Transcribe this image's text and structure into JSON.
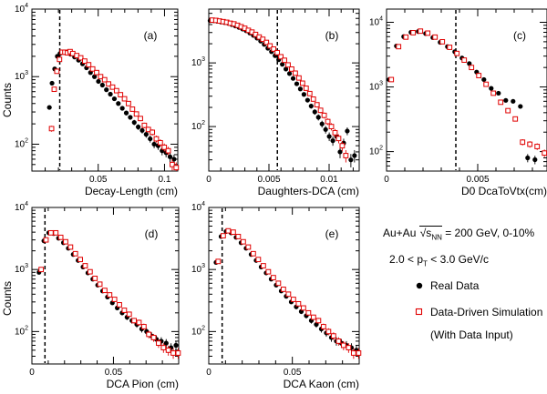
{
  "chart_data": [
    {
      "id": "a",
      "type": "scatter",
      "panel_label": "(a)",
      "xlabel": "Decay-Length (cm)",
      "ylabel": "Counts",
      "log_y": true,
      "xlim": [
        0,
        0.11
      ],
      "ylim": [
        40,
        10000
      ],
      "xticks": [
        0.05,
        0.1
      ],
      "cut": 0.021,
      "series": [
        {
          "name": "Real Data",
          "x": [
            0.014,
            0.016,
            0.018,
            0.02,
            0.022,
            0.024,
            0.026,
            0.028,
            0.03,
            0.033,
            0.036,
            0.039,
            0.042,
            0.045,
            0.048,
            0.051,
            0.054,
            0.057,
            0.06,
            0.063,
            0.066,
            0.069,
            0.072,
            0.075,
            0.078,
            0.081,
            0.084,
            0.087,
            0.09,
            0.093,
            0.096,
            0.099,
            0.102,
            0.105,
            0.108
          ],
          "y": [
            350,
            800,
            1300,
            2000,
            2200,
            2300,
            2300,
            2250,
            2150,
            1950,
            1750,
            1550,
            1350,
            1150,
            1000,
            850,
            750,
            640,
            550,
            470,
            400,
            340,
            290,
            250,
            210,
            180,
            160,
            140,
            120,
            100,
            95,
            80,
            75,
            65,
            60
          ]
        },
        {
          "name": "Data-Driven Simulation (With Data Input)",
          "x": [
            0.014,
            0.016,
            0.018,
            0.02,
            0.022,
            0.024,
            0.026,
            0.028,
            0.03,
            0.033,
            0.036,
            0.039,
            0.042,
            0.045,
            0.048,
            0.051,
            0.054,
            0.057,
            0.06,
            0.063,
            0.066,
            0.069,
            0.072,
            0.075,
            0.078,
            0.081,
            0.084,
            0.087,
            0.09,
            0.093,
            0.096,
            0.099,
            0.102,
            0.105,
            0.108
          ],
          "y": [
            170,
            650,
            1200,
            1800,
            2300,
            2300,
            2250,
            2350,
            2200,
            2050,
            1900,
            1700,
            1500,
            1300,
            1150,
            1000,
            900,
            780,
            700,
            620,
            540,
            470,
            400,
            330,
            280,
            240,
            190,
            165,
            150,
            120,
            105,
            90,
            80,
            50,
            45
          ]
        }
      ]
    },
    {
      "id": "b",
      "type": "scatter",
      "panel_label": "(b)",
      "xlabel": "Daughters-DCA (cm)",
      "log_y": true,
      "xlim": [
        0,
        0.0125
      ],
      "ylim": [
        20,
        7000
      ],
      "xticks": [
        0,
        0.005,
        0.01
      ],
      "cut": 0.0057,
      "series": [
        {
          "name": "Real Data",
          "x": [
            0.0002,
            0.0005,
            0.0008,
            0.0011,
            0.0014,
            0.0017,
            0.002,
            0.0023,
            0.0026,
            0.0029,
            0.0032,
            0.0035,
            0.0038,
            0.0041,
            0.0044,
            0.0047,
            0.005,
            0.0053,
            0.0056,
            0.0059,
            0.0062,
            0.0065,
            0.0068,
            0.0071,
            0.0074,
            0.0077,
            0.008,
            0.0083,
            0.0086,
            0.0089,
            0.0092,
            0.0095,
            0.0098,
            0.0101,
            0.0104,
            0.0107,
            0.011,
            0.0113,
            0.0116,
            0.0119,
            0.0122
          ],
          "y": [
            4600,
            4600,
            4500,
            4400,
            4300,
            4200,
            4000,
            3800,
            3600,
            3400,
            3200,
            2950,
            2700,
            2450,
            2200,
            1950,
            1700,
            1500,
            1300,
            1120,
            950,
            800,
            680,
            570,
            470,
            390,
            320,
            260,
            210,
            170,
            140,
            110,
            90,
            70,
            60,
            70,
            40,
            55,
            85,
            30,
            35
          ]
        },
        {
          "name": "Data-Driven Simulation (With Data Input)",
          "x": [
            0.0002,
            0.0005,
            0.0008,
            0.0011,
            0.0014,
            0.0017,
            0.002,
            0.0023,
            0.0026,
            0.0029,
            0.0032,
            0.0035,
            0.0038,
            0.0041,
            0.0044,
            0.0047,
            0.005,
            0.0053,
            0.0056,
            0.0059,
            0.0062,
            0.0065,
            0.0068,
            0.0071,
            0.0074,
            0.0077,
            0.008,
            0.0083,
            0.0086,
            0.0089,
            0.0092,
            0.0095,
            0.0098,
            0.0101,
            0.0104,
            0.0107,
            0.011,
            0.0113
          ],
          "y": [
            4700,
            4650,
            4550,
            4450,
            4350,
            4200,
            4100,
            3900,
            3700,
            3500,
            3250,
            3050,
            2800,
            2550,
            2350,
            2100,
            1850,
            1650,
            1450,
            1250,
            1100,
            930,
            800,
            690,
            580,
            480,
            400,
            330,
            270,
            220,
            180,
            150,
            120,
            100,
            80,
            65,
            50,
            35
          ]
        }
      ]
    },
    {
      "id": "c",
      "type": "scatter",
      "panel_label": "(c)",
      "xlabel": "D0 DcaToVtx(cm)",
      "log_y": true,
      "xlim": [
        0,
        0.0088
      ],
      "ylim": [
        50,
        16000
      ],
      "xticks": [
        0,
        0.005
      ],
      "cut": 0.0038,
      "series": [
        {
          "name": "Real Data",
          "x": [
            0.0002,
            0.0006,
            0.001,
            0.0014,
            0.0018,
            0.0022,
            0.0026,
            0.003,
            0.0034,
            0.0038,
            0.0042,
            0.0046,
            0.005,
            0.0054,
            0.0058,
            0.0062,
            0.0066,
            0.007,
            0.0074,
            0.0078,
            0.0082
          ],
          "y": [
            1300,
            4300,
            6000,
            7000,
            7200,
            6700,
            5800,
            4900,
            4200,
            3500,
            2800,
            2300,
            1700,
            1300,
            950,
            800,
            620,
            600,
            500,
            80,
            75
          ]
        },
        {
          "name": "Data-Driven Simulation (With Data Input)",
          "x": [
            0.0002,
            0.0006,
            0.001,
            0.0014,
            0.0018,
            0.0022,
            0.0026,
            0.003,
            0.0034,
            0.0038,
            0.0042,
            0.0046,
            0.005,
            0.0054,
            0.0058,
            0.0062,
            0.0066,
            0.007,
            0.0074,
            0.0078,
            0.0082,
            0.0086
          ],
          "y": [
            1300,
            4200,
            5900,
            6900,
            7300,
            6800,
            5900,
            5000,
            4100,
            3300,
            2600,
            2000,
            1500,
            1100,
            800,
            580,
            430,
            320,
            140,
            130,
            120,
            95
          ]
        }
      ]
    },
    {
      "id": "d",
      "type": "scatter",
      "panel_label": "(d)",
      "xlabel": "DCA Pion (cm)",
      "ylabel": "Counts",
      "log_y": true,
      "xlim": [
        0,
        0.09
      ],
      "ylim": [
        30,
        10000
      ],
      "xticks": [
        0,
        0.05
      ],
      "cut": 0.008,
      "series": [
        {
          "name": "Real Data",
          "x": [
            0.005,
            0.008,
            0.011,
            0.014,
            0.017,
            0.02,
            0.023,
            0.026,
            0.029,
            0.032,
            0.035,
            0.038,
            0.041,
            0.044,
            0.047,
            0.05,
            0.053,
            0.056,
            0.059,
            0.062,
            0.065,
            0.068,
            0.071,
            0.074,
            0.077,
            0.08,
            0.083,
            0.086,
            0.089
          ],
          "y": [
            900,
            2900,
            3900,
            3800,
            3200,
            2700,
            2200,
            1750,
            1400,
            1100,
            880,
            700,
            560,
            450,
            360,
            290,
            240,
            200,
            170,
            150,
            130,
            110,
            100,
            85,
            75,
            70,
            65,
            55,
            60
          ]
        },
        {
          "name": "Data-Driven Simulation (With Data Input)",
          "x": [
            0.005,
            0.008,
            0.011,
            0.014,
            0.017,
            0.02,
            0.023,
            0.026,
            0.029,
            0.032,
            0.035,
            0.038,
            0.041,
            0.044,
            0.047,
            0.05,
            0.053,
            0.056,
            0.059,
            0.062,
            0.065,
            0.068,
            0.071,
            0.074,
            0.077,
            0.08,
            0.083,
            0.086,
            0.089
          ],
          "y": [
            1000,
            3000,
            3900,
            3900,
            3300,
            2800,
            2300,
            1800,
            1450,
            1150,
            920,
            720,
            580,
            460,
            390,
            330,
            270,
            220,
            190,
            150,
            140,
            120,
            90,
            80,
            65,
            55,
            50,
            45,
            45
          ]
        }
      ]
    },
    {
      "id": "e",
      "type": "scatter",
      "panel_label": "(e)",
      "xlabel": "DCA Kaon (cm)",
      "log_y": true,
      "xlim": [
        0,
        0.09
      ],
      "ylim": [
        30,
        10000
      ],
      "xticks": [
        0,
        0.05
      ],
      "cut": 0.008,
      "series": [
        {
          "name": "Real Data",
          "x": [
            0.005,
            0.008,
            0.011,
            0.014,
            0.017,
            0.02,
            0.023,
            0.026,
            0.029,
            0.032,
            0.035,
            0.038,
            0.041,
            0.044,
            0.047,
            0.05,
            0.053,
            0.056,
            0.059,
            0.062,
            0.065,
            0.068,
            0.071,
            0.074,
            0.077,
            0.08,
            0.083,
            0.086,
            0.089
          ],
          "y": [
            1300,
            3400,
            4100,
            3900,
            3300,
            2700,
            2200,
            1750,
            1400,
            1100,
            880,
            700,
            560,
            450,
            370,
            300,
            250,
            210,
            180,
            150,
            130,
            110,
            95,
            80,
            70,
            65,
            60,
            55,
            50
          ]
        },
        {
          "name": "Data-Driven Simulation (With Data Input)",
          "x": [
            0.005,
            0.008,
            0.011,
            0.014,
            0.017,
            0.02,
            0.023,
            0.026,
            0.029,
            0.032,
            0.035,
            0.038,
            0.041,
            0.044,
            0.047,
            0.05,
            0.053,
            0.056,
            0.059,
            0.062,
            0.065,
            0.068,
            0.071,
            0.074,
            0.077,
            0.08,
            0.083,
            0.086,
            0.089
          ],
          "y": [
            1350,
            3500,
            4200,
            4000,
            3400,
            2800,
            2300,
            1800,
            1450,
            1150,
            920,
            740,
            600,
            480,
            400,
            330,
            280,
            240,
            200,
            170,
            150,
            120,
            100,
            85,
            70,
            60,
            55,
            45,
            45
          ]
        }
      ]
    }
  ],
  "legend": {
    "collision": "Au+Au",
    "energy": "= 200 GeV, 0-10%",
    "sqrt_sub": "NN",
    "pt_left": "2.0 < p",
    "pt_sub": "T",
    "pt_right": "< 3.0 GeV/c",
    "items": [
      {
        "label": "Real Data",
        "color": "#000000",
        "marker": "filled-circle"
      },
      {
        "label": "Data-Driven Simulation",
        "color": "#e00000",
        "marker": "open-square"
      }
    ],
    "note": "(With Data Input)"
  },
  "colors": {
    "data": "#000000",
    "sim": "#e00000"
  }
}
